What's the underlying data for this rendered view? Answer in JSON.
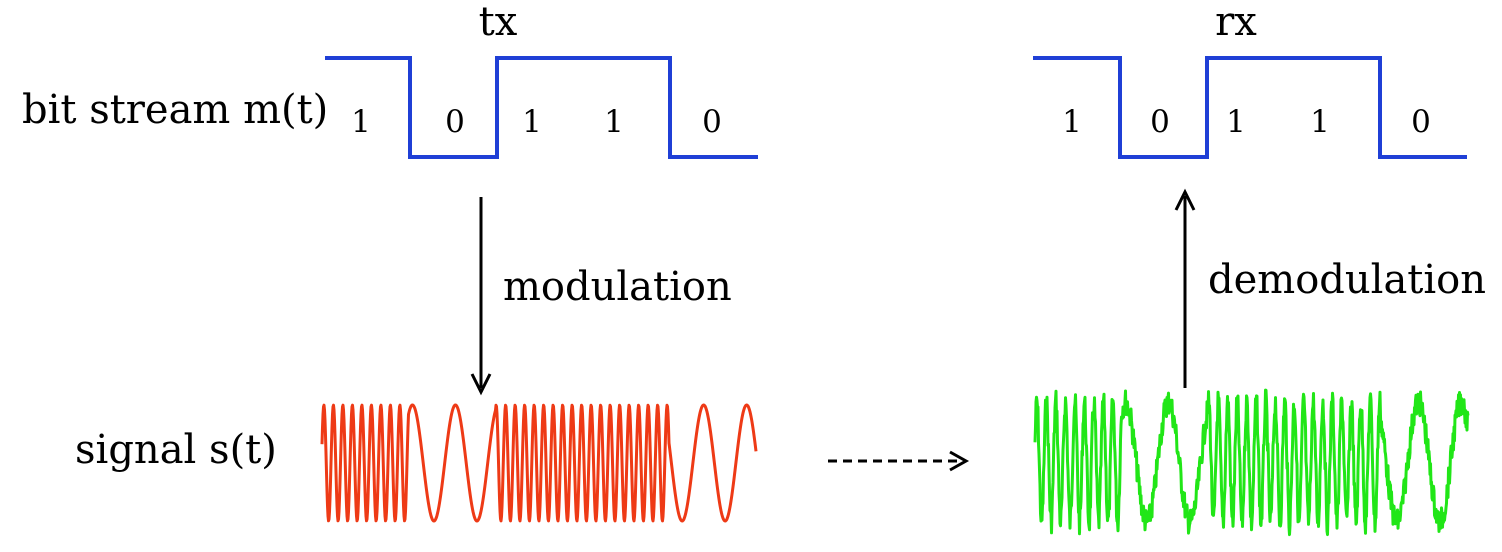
{
  "transmitter": {
    "title": "tx",
    "bit_stream_label": "bit stream m(t)",
    "bits": [
      "1",
      "0",
      "1",
      "1",
      "0"
    ],
    "signal_label": "signal s(t)",
    "modulation_label": "modulation"
  },
  "receiver": {
    "title": "rx",
    "bits": [
      "1",
      "0",
      "1",
      "1",
      "0"
    ],
    "demodulation_label": "demodulation"
  },
  "colors": {
    "bit_wave": "#1f3fd6",
    "tx_signal": "#ee3a16",
    "rx_signal": "#21e617",
    "arrows": "#000000"
  }
}
